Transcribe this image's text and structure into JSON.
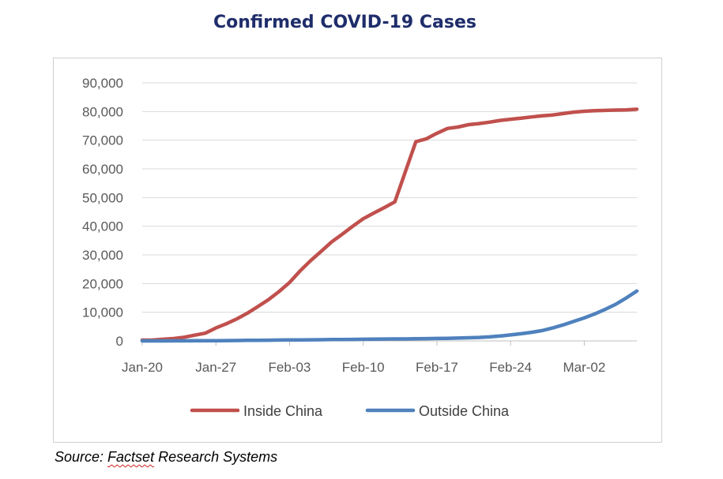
{
  "chart_data": {
    "type": "line",
    "title": "Confirmed COVID-19 Cases",
    "xlabel": "",
    "ylabel": "",
    "x": [
      "Jan-20",
      "Jan-21",
      "Jan-22",
      "Jan-23",
      "Jan-24",
      "Jan-25",
      "Jan-26",
      "Jan-27",
      "Jan-28",
      "Jan-29",
      "Jan-30",
      "Jan-31",
      "Feb-01",
      "Feb-02",
      "Feb-03",
      "Feb-04",
      "Feb-05",
      "Feb-06",
      "Feb-07",
      "Feb-08",
      "Feb-09",
      "Feb-10",
      "Feb-11",
      "Feb-12",
      "Feb-13",
      "Feb-14",
      "Feb-15",
      "Feb-16",
      "Feb-17",
      "Feb-18",
      "Feb-19",
      "Feb-20",
      "Feb-21",
      "Feb-22",
      "Feb-23",
      "Feb-24",
      "Feb-25",
      "Feb-26",
      "Feb-27",
      "Feb-28",
      "Feb-29",
      "Mar-01",
      "Mar-02",
      "Mar-03",
      "Mar-04",
      "Mar-05",
      "Mar-06",
      "Mar-07"
    ],
    "x_tick_labels": [
      "Jan-20",
      "Jan-27",
      "Feb-03",
      "Feb-10",
      "Feb-17",
      "Feb-24",
      "Mar-02"
    ],
    "series": [
      {
        "name": "Inside China",
        "color": "#c0504d",
        "values": [
          280,
          310,
          570,
          830,
          1300,
          2000,
          2700,
          4500,
          6000,
          7700,
          9700,
          12000,
          14400,
          17200,
          20400,
          24400,
          28000,
          31200,
          34500,
          37200,
          40000,
          42600,
          44600,
          46500,
          48500,
          59000,
          69500,
          70500,
          72400,
          74100,
          74600,
          75400,
          75800,
          76300,
          76900,
          77300,
          77700,
          78100,
          78500,
          78800,
          79300,
          79800,
          80100,
          80300,
          80400,
          80500,
          80600,
          80800
        ]
      },
      {
        "name": "Outside China",
        "color": "#4f81bd",
        "values": [
          0,
          5,
          10,
          20,
          30,
          50,
          60,
          80,
          100,
          150,
          200,
          230,
          250,
          290,
          320,
          350,
          380,
          420,
          460,
          480,
          530,
          580,
          620,
          650,
          680,
          700,
          750,
          800,
          850,
          900,
          1000,
          1100,
          1200,
          1400,
          1700,
          2100,
          2500,
          3000,
          3600,
          4500,
          5600,
          6800,
          8000,
          9400,
          11000,
          12800,
          15000,
          17400
        ]
      }
    ],
    "y_tick_labels": [
      "0",
      "10,000",
      "20,000",
      "30,000",
      "40,000",
      "50,000",
      "60,000",
      "70,000",
      "80,000",
      "90,000"
    ],
    "ylim": [
      0,
      90000
    ],
    "grid": true,
    "legend_position": "bottom"
  },
  "source": {
    "prefix": "Source: ",
    "name": "Factset",
    "suffix": " Research Systems"
  }
}
